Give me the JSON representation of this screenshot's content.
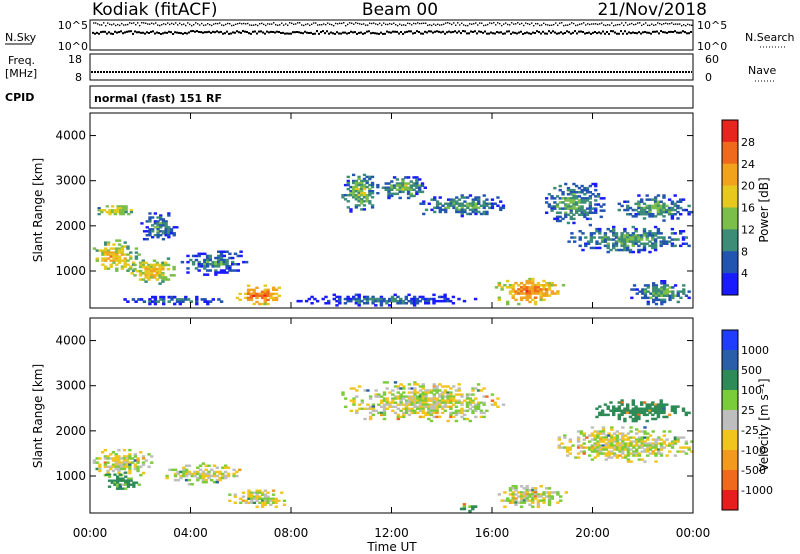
{
  "header": {
    "radar": "Kodiak (fitACF)",
    "beam": "Beam 00",
    "date": "21/Nov/2018"
  },
  "aux_panels": {
    "nsky_label": "N.Sky",
    "nsky_ticks": [
      "10^5",
      "10^0"
    ],
    "nsearch_label": "N.Search",
    "nsearch_ticks": [
      "10^5",
      "10^0"
    ],
    "freq_label_1": "Freq.",
    "freq_label_2": "[MHz]",
    "freq_ticks": [
      "18",
      "8"
    ],
    "nave_label": "Nave",
    "nave_ticks": [
      "60",
      "0"
    ],
    "cpid_label": "CPID",
    "cpid_text": "normal (fast) 151 RF"
  },
  "x_axis": {
    "label": "Time UT",
    "ticks": [
      "00:00",
      "04:00",
      "08:00",
      "12:00",
      "16:00",
      "20:00",
      "00:00"
    ]
  },
  "y_axis": {
    "label": "Slant Range [km]",
    "ticks": [
      "1000",
      "2000",
      "3000",
      "4000"
    ]
  },
  "power_colorbar": {
    "label": "Power [dB]",
    "ticks": [
      "4",
      "8",
      "12",
      "16",
      "20",
      "24",
      "28"
    ],
    "colors": [
      "#1a1aff",
      "#2255b0",
      "#3c8c78",
      "#7bbf4a",
      "#e6c81e",
      "#f2a31e",
      "#f06a1e",
      "#e6261e"
    ]
  },
  "velocity_colorbar": {
    "label": "Velocity [m s⁻¹]",
    "ticks": [
      "1000",
      "500",
      "100",
      "25",
      "-25",
      "-100",
      "-500",
      "-1000"
    ],
    "colors": [
      "#1f3cff",
      "#2a5fa8",
      "#2e8b57",
      "#7acc3a",
      "#bebebe",
      "#f2c41e",
      "#f29a1e",
      "#f06a1e",
      "#e61e1e"
    ]
  },
  "chart_data": [
    {
      "type": "heatmap",
      "title": "Power",
      "xlabel": "Time UT",
      "ylabel": "Slant Range [km]",
      "xlim": [
        0,
        24
      ],
      "ylim": [
        180,
        4500
      ],
      "colorbar_range": [
        0,
        30
      ],
      "regions": [
        {
          "t": [
            0.0,
            2.0
          ],
          "r": [
            900,
            1700
          ],
          "v": 22
        },
        {
          "t": [
            0.3,
            1.8
          ],
          "r": [
            2200,
            2500
          ],
          "v": 20
        },
        {
          "t": [
            1.5,
            3.5
          ],
          "r": [
            700,
            1300
          ],
          "v": 22
        },
        {
          "t": [
            2.0,
            3.5
          ],
          "r": [
            1600,
            2300
          ],
          "v": 12
        },
        {
          "t": [
            3.5,
            6.5
          ],
          "r": [
            900,
            1500
          ],
          "v": 12
        },
        {
          "t": [
            1.0,
            5.5
          ],
          "r": [
            250,
            450
          ],
          "v": 10
        },
        {
          "t": [
            5.8,
            7.8
          ],
          "r": [
            250,
            700
          ],
          "v": 28
        },
        {
          "t": [
            8.0,
            15.5
          ],
          "r": [
            220,
            500
          ],
          "v": 10
        },
        {
          "t": [
            10.0,
            11.5
          ],
          "r": [
            2300,
            3200
          ],
          "v": 16
        },
        {
          "t": [
            11.5,
            13.5
          ],
          "r": [
            2600,
            3100
          ],
          "v": 15
        },
        {
          "t": [
            13.0,
            16.5
          ],
          "r": [
            2200,
            2700
          ],
          "v": 14
        },
        {
          "t": [
            16.0,
            19.0
          ],
          "r": [
            250,
            850
          ],
          "v": 26
        },
        {
          "t": [
            19.0,
            24.0
          ],
          "r": [
            1400,
            2000
          ],
          "v": 14
        },
        {
          "t": [
            18.0,
            20.5
          ],
          "r": [
            2000,
            3000
          ],
          "v": 14
        },
        {
          "t": [
            21.0,
            24.0
          ],
          "r": [
            2100,
            2700
          ],
          "v": 14
        },
        {
          "t": [
            21.5,
            24.0
          ],
          "r": [
            250,
            800
          ],
          "v": 14
        }
      ]
    },
    {
      "type": "heatmap",
      "title": "Velocity",
      "xlabel": "Time UT",
      "ylabel": "Slant Range [km]",
      "xlim": [
        0,
        24
      ],
      "ylim": [
        180,
        4500
      ],
      "colorbar_range": [
        -1000,
        1000
      ],
      "regions": [
        {
          "t": [
            0.0,
            2.5
          ],
          "r": [
            1000,
            1600
          ],
          "v": 0
        },
        {
          "t": [
            0.5,
            2.0
          ],
          "r": [
            700,
            1100
          ],
          "v": 150
        },
        {
          "t": [
            3.0,
            6.0
          ],
          "r": [
            800,
            1300
          ],
          "v": 0
        },
        {
          "t": [
            5.5,
            8.0
          ],
          "r": [
            300,
            700
          ],
          "v": 0
        },
        {
          "t": [
            10.0,
            16.5
          ],
          "r": [
            2200,
            3100
          ],
          "v": 0
        },
        {
          "t": [
            14.5,
            15.5
          ],
          "r": [
            200,
            400
          ],
          "v": 150
        },
        {
          "t": [
            16.0,
            19.0
          ],
          "r": [
            300,
            800
          ],
          "v": 0
        },
        {
          "t": [
            18.5,
            24.0
          ],
          "r": [
            1300,
            2100
          ],
          "v": 0
        },
        {
          "t": [
            20.0,
            24.0
          ],
          "r": [
            2200,
            2700
          ],
          "v": 400
        }
      ]
    }
  ]
}
